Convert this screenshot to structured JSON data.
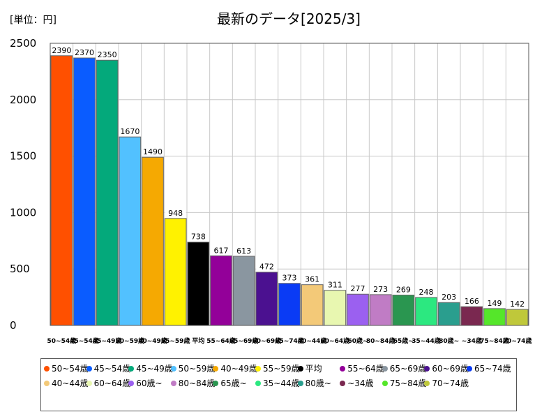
{
  "unit_label": "[単位：円]",
  "chart_data": {
    "type": "bar",
    "title": "最新のデータ[2025/3]",
    "ylim": [
      0,
      2500
    ],
    "yticks": [
      0,
      500,
      1000,
      1500,
      2000,
      2500
    ],
    "grid": true,
    "legend": "bottom",
    "categories": [
      "50~54歳",
      "45~54歳",
      "45~49歳",
      "50~59歳",
      "40~49歳",
      "55~59歳",
      "平均",
      "55~64歳",
      "65~69歳",
      "60~69歳",
      "65~74歳",
      "40~44歳",
      "60~64歳",
      "60歳~",
      "80~84歳",
      "65歳~",
      "35~44歳",
      "80歳~",
      "~34歳",
      "75~84歳",
      "70~74歳"
    ],
    "xtick_labels": [
      "50~54歳",
      "45~54歳",
      "45~49歳",
      "50~59歳",
      "40~49歳",
      "55~59歳",
      "平均",
      "55~64歳",
      "65~69歳",
      "60~69歳",
      "65~74歳",
      "40~44歳",
      "60~64歳",
      "60歳~",
      "80~84歳",
      "65歳~",
      "35~44歳",
      "80歳~",
      "~34歳",
      "75~84歳",
      "70~74歳"
    ],
    "values": [
      2390,
      2370,
      2350,
      1670,
      1490,
      948,
      738,
      617,
      613,
      472,
      373,
      361,
      311,
      277,
      273,
      269,
      248,
      203,
      166,
      149,
      142
    ],
    "colors": [
      "#ff5000",
      "#0a5cff",
      "#04a97b",
      "#52c1ff",
      "#f5a902",
      "#fff200",
      "#000000",
      "#930099",
      "#8a96a0",
      "#4b1190",
      "#0a3bf5",
      "#f3c978",
      "#e8f7b0",
      "#9b60f0",
      "#c07cc5",
      "#2a9650",
      "#2ce880",
      "#2a9e8e",
      "#7a2850",
      "#55e62a",
      "#bfc83a"
    ]
  }
}
